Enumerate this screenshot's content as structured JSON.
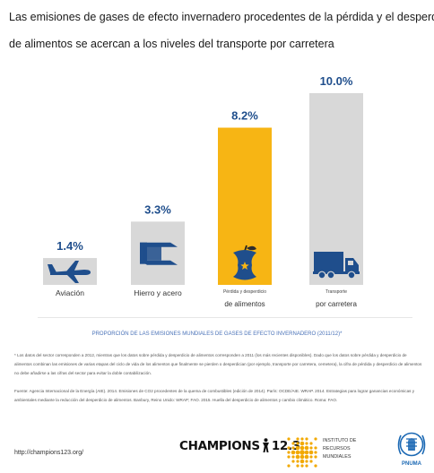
{
  "title_lines": [
    "Las emisiones de gases de efecto invernadero procedentes de la pérdida y el desperdicio",
    "de alimentos se acercan a los niveles del transporte por carretera"
  ],
  "chart_data": {
    "type": "bar",
    "categories": [
      "Aviación",
      "Hierro y acero",
      "Pérdida y desperdicio de alimentos",
      "Transporte por carretera"
    ],
    "values": [
      1.4,
      3.3,
      8.2,
      10.0
    ],
    "value_labels": [
      "1.4%",
      "3.3%",
      "8.2%",
      "10.0%"
    ],
    "category_label_lines": [
      [
        "Aviación"
      ],
      [
        "Hierro y acero"
      ],
      [
        "Pérdida y desperdicio",
        "de alimentos"
      ],
      [
        "Transporte",
        "por carretera"
      ]
    ],
    "icons": [
      "airplane-icon",
      "steel-beam-icon",
      "apple-core-icon",
      "truck-icon"
    ],
    "colors": [
      "#d8d8d8",
      "#d8d8d8",
      "#f7b514",
      "#d8d8d8"
    ],
    "icon_color": "#1f4e8c",
    "value_label_color": "#1f4e8c",
    "ylim": [
      0,
      10
    ],
    "grid": false,
    "legend": "none"
  },
  "proportion_caption": "PROPORCIÓN DE LAS EMISIONES MUNDIALES DE GASES DE EFECTO INVERNADERO (2011/12)*",
  "footnote": "* Los datos del sector corresponden a 2012, mientras que los datos sobre pérdida y desperdicio de alimentos corresponden a 2011 (los más recientes disponibles). Dado que los datos sobre pérdida y desperdicio de alimentos combinan las emisiones de varias etapas del ciclo de vida de los alimentos que finalmente se pierden o desperdician (por ejemplo, transporte por carretera, cemetera), la cifra de pérdida y desperdicio de alimentos no debe añadirse a las cifras del sector para evitar la doble contabilización.",
  "sources": "Fuente: Agencia Internacional de la Energía (AIE). 2014. Emisiones de CO2 procedentes de la quema de combustibles (edición de 2014). París: OCDE/AIE. WRAP. 2014. Estrategias para lograr ganancias económicas y ambientales mediante la reducción del desperdicio de alimentos. Banbury, Reino Unido: WRAP; FAO. 2015. Huella del desperdicio de alimentos y cambio climático. Roma: FAO.",
  "url": "http://champions123.org/",
  "logos": {
    "champions": {
      "left": "CHAMPIONS",
      "right": "12.3"
    },
    "wri": {
      "lines": [
        "INSTITUTO DE",
        "RECURSOS",
        "MUNDIALES"
      ],
      "color": "#f2a900"
    },
    "unep": {
      "text": "PNUMA",
      "color": "#1c69b4"
    }
  }
}
